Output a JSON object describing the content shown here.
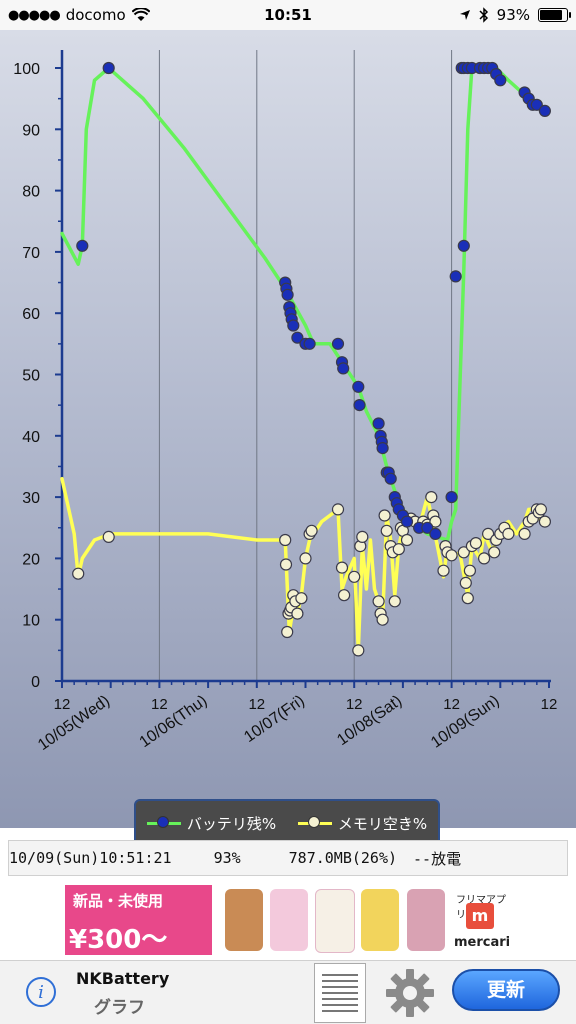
{
  "status_bar": {
    "signal_dots": "●●●●●",
    "carrier": "docomo",
    "time": "10:51",
    "battery_percent": "93%",
    "battery_level": 0.93,
    "icons": [
      "wifi-icon",
      "location-arrow-icon",
      "bluetooth-icon",
      "battery-icon"
    ]
  },
  "colors": {
    "battery_series": "#66f25a",
    "memory_series": "#ffff55",
    "battery_marker": "#1a2fb8",
    "memory_marker": "#f4f1d2",
    "axis": "#1c3b8f",
    "ad_pink": "#e8488a",
    "button_blue": "#2f6fd6"
  },
  "chart_data": {
    "type": "line",
    "x_tick_labels": [
      "12",
      "10/05(Wed)",
      "12",
      "10/06(Thu)",
      "12",
      "10/07(Fri)",
      "12",
      "10/08(Sat)",
      "12",
      "10/09(Sun)",
      "12"
    ],
    "y_ticks": [
      "0",
      "10",
      "20",
      "30",
      "40",
      "50",
      "60",
      "70",
      "80",
      "90",
      "100"
    ],
    "ylim": [
      0,
      100
    ],
    "x_unit": "hours since 10/04 12:00",
    "xlim": [
      0,
      120
    ],
    "grid": "vertical lines at midnight",
    "legend_position": "bottom-center",
    "series": [
      {
        "name": "バッテリ残%",
        "line": [
          [
            0,
            73
          ],
          [
            4,
            68
          ],
          [
            5,
            71
          ],
          [
            6,
            90
          ],
          [
            8,
            98
          ],
          [
            11.5,
            100
          ],
          [
            20,
            95
          ],
          [
            30,
            87
          ],
          [
            40,
            78
          ],
          [
            50,
            69
          ],
          [
            55,
            64
          ],
          [
            60,
            58
          ],
          [
            62,
            55
          ],
          [
            66,
            55
          ],
          [
            68,
            53
          ],
          [
            70,
            51
          ],
          [
            73,
            48
          ],
          [
            75,
            44
          ],
          [
            78,
            40
          ],
          [
            80,
            35
          ],
          [
            82,
            31
          ],
          [
            84,
            28
          ],
          [
            86,
            26
          ],
          [
            88,
            25
          ],
          [
            90,
            24
          ],
          [
            95,
            23
          ],
          [
            96,
            26
          ],
          [
            97,
            28
          ],
          [
            99,
            67
          ],
          [
            100,
            90
          ],
          [
            101,
            100
          ],
          [
            107,
            100
          ],
          [
            110,
            98
          ],
          [
            115,
            95
          ],
          [
            119,
            93
          ]
        ],
        "markers": [
          [
            5,
            71
          ],
          [
            11.5,
            100
          ],
          [
            55,
            65
          ],
          [
            55.3,
            64
          ],
          [
            55.6,
            63
          ],
          [
            56,
            61
          ],
          [
            56.3,
            60
          ],
          [
            56.6,
            59
          ],
          [
            57,
            58
          ],
          [
            58,
            56
          ],
          [
            60,
            55
          ],
          [
            61,
            55
          ],
          [
            68,
            55
          ],
          [
            69,
            52
          ],
          [
            69.3,
            51
          ],
          [
            73,
            48
          ],
          [
            73.3,
            45
          ],
          [
            78,
            42
          ],
          [
            78.5,
            40
          ],
          [
            78.8,
            39
          ],
          [
            79,
            38
          ],
          [
            80,
            34
          ],
          [
            80.5,
            34
          ],
          [
            81,
            33
          ],
          [
            82,
            30
          ],
          [
            82.5,
            29
          ],
          [
            83,
            28
          ],
          [
            84,
            27
          ],
          [
            85,
            26
          ],
          [
            88,
            25
          ],
          [
            90,
            25
          ],
          [
            92,
            24
          ],
          [
            96,
            30
          ],
          [
            97,
            66
          ],
          [
            99,
            71
          ],
          [
            98.5,
            100
          ],
          [
            99,
            100
          ],
          [
            100,
            100
          ],
          [
            101,
            100
          ],
          [
            103,
            100
          ],
          [
            104,
            100
          ],
          [
            105,
            100
          ],
          [
            106,
            100
          ],
          [
            107,
            99
          ],
          [
            108,
            98
          ],
          [
            114,
            96
          ],
          [
            115,
            95
          ],
          [
            116,
            94
          ],
          [
            117,
            94
          ],
          [
            119,
            93
          ]
        ]
      },
      {
        "name": "メモリ空き%",
        "line": [
          [
            0,
            33
          ],
          [
            3,
            24
          ],
          [
            4,
            17
          ],
          [
            5,
            20
          ],
          [
            8,
            23
          ],
          [
            12,
            24
          ],
          [
            24,
            24
          ],
          [
            36,
            24
          ],
          [
            48,
            23
          ],
          [
            55,
            23
          ],
          [
            56,
            8
          ],
          [
            57,
            12
          ],
          [
            58,
            11
          ],
          [
            59,
            14
          ],
          [
            60,
            20
          ],
          [
            61,
            23
          ],
          [
            62,
            24
          ],
          [
            64,
            26
          ],
          [
            68,
            28
          ],
          [
            69,
            15
          ],
          [
            70,
            17
          ],
          [
            72,
            20
          ],
          [
            73,
            5
          ],
          [
            74,
            22
          ],
          [
            75,
            15
          ],
          [
            76,
            23
          ],
          [
            77,
            15
          ],
          [
            78,
            13
          ],
          [
            79,
            10
          ],
          [
            80,
            27
          ],
          [
            81,
            23
          ],
          [
            82,
            14
          ],
          [
            83,
            22
          ],
          [
            84,
            25
          ],
          [
            86,
            26
          ],
          [
            88,
            25
          ],
          [
            90,
            30
          ],
          [
            91,
            27
          ],
          [
            94,
            17
          ],
          [
            95,
            22
          ],
          [
            96,
            20
          ],
          [
            98,
            21
          ],
          [
            100,
            14
          ],
          [
            101,
            22
          ],
          [
            103,
            20
          ],
          [
            104,
            24
          ],
          [
            106,
            21
          ],
          [
            108,
            25
          ],
          [
            110,
            26
          ],
          [
            112,
            24
          ],
          [
            114,
            26
          ],
          [
            115,
            28
          ],
          [
            117,
            28
          ],
          [
            118,
            26
          ]
        ],
        "markers": [
          [
            4,
            17.5
          ],
          [
            11.5,
            23.5
          ],
          [
            55,
            23
          ],
          [
            55.2,
            19
          ],
          [
            55.5,
            8
          ],
          [
            55.8,
            11
          ],
          [
            56.2,
            11.5
          ],
          [
            56.5,
            12
          ],
          [
            57,
            14
          ],
          [
            57.5,
            13
          ],
          [
            58,
            11
          ],
          [
            59,
            13.5
          ],
          [
            60,
            20
          ],
          [
            61,
            24
          ],
          [
            61.5,
            24.5
          ],
          [
            68,
            28
          ],
          [
            69,
            18.5
          ],
          [
            69.5,
            14
          ],
          [
            72,
            17
          ],
          [
            73,
            5
          ],
          [
            73.5,
            22
          ],
          [
            74,
            23.5
          ],
          [
            78,
            13
          ],
          [
            78.5,
            11
          ],
          [
            79,
            10
          ],
          [
            79.5,
            27
          ],
          [
            80,
            24.5
          ],
          [
            81,
            22
          ],
          [
            81.5,
            21
          ],
          [
            82,
            13
          ],
          [
            83,
            21.5
          ],
          [
            83.5,
            25
          ],
          [
            84,
            24.5
          ],
          [
            85,
            23
          ],
          [
            86,
            26.5
          ],
          [
            87,
            26
          ],
          [
            89,
            26
          ],
          [
            90,
            25.5
          ],
          [
            91,
            30
          ],
          [
            91.5,
            27
          ],
          [
            92,
            26
          ],
          [
            94,
            18
          ],
          [
            94.5,
            22
          ],
          [
            95,
            21
          ],
          [
            96,
            20.5
          ],
          [
            99,
            21
          ],
          [
            99.5,
            16
          ],
          [
            100,
            13.5
          ],
          [
            100.5,
            18
          ],
          [
            101,
            22
          ],
          [
            102,
            22.5
          ],
          [
            104,
            20
          ],
          [
            105,
            24
          ],
          [
            106.5,
            21
          ],
          [
            107,
            23
          ],
          [
            108,
            24
          ],
          [
            109,
            25
          ],
          [
            110,
            24
          ],
          [
            114,
            24
          ],
          [
            115,
            26
          ],
          [
            116,
            26.5
          ],
          [
            117,
            28
          ],
          [
            117.5,
            27.5
          ],
          [
            118,
            28
          ],
          [
            119,
            26
          ]
        ]
      }
    ]
  },
  "info_row": {
    "datetime": "10/09(Sun)10:51:21",
    "battery": "93%",
    "memory": "787.0MB(26%)",
    "state": "--放電"
  },
  "ad": {
    "top_text": "新品・未使用",
    "price_text": "¥300〜",
    "brand_kana": "フリマアプリ",
    "brand_letter": "m",
    "brand": "mercari"
  },
  "footer": {
    "info_icon": "info-circle-icon",
    "info_glyph": "i",
    "app_name": "NKBattery",
    "page_name": "グラフ",
    "list_icon": "list-document-icon",
    "settings_icon": "gear-icon",
    "update_label": "更新"
  }
}
